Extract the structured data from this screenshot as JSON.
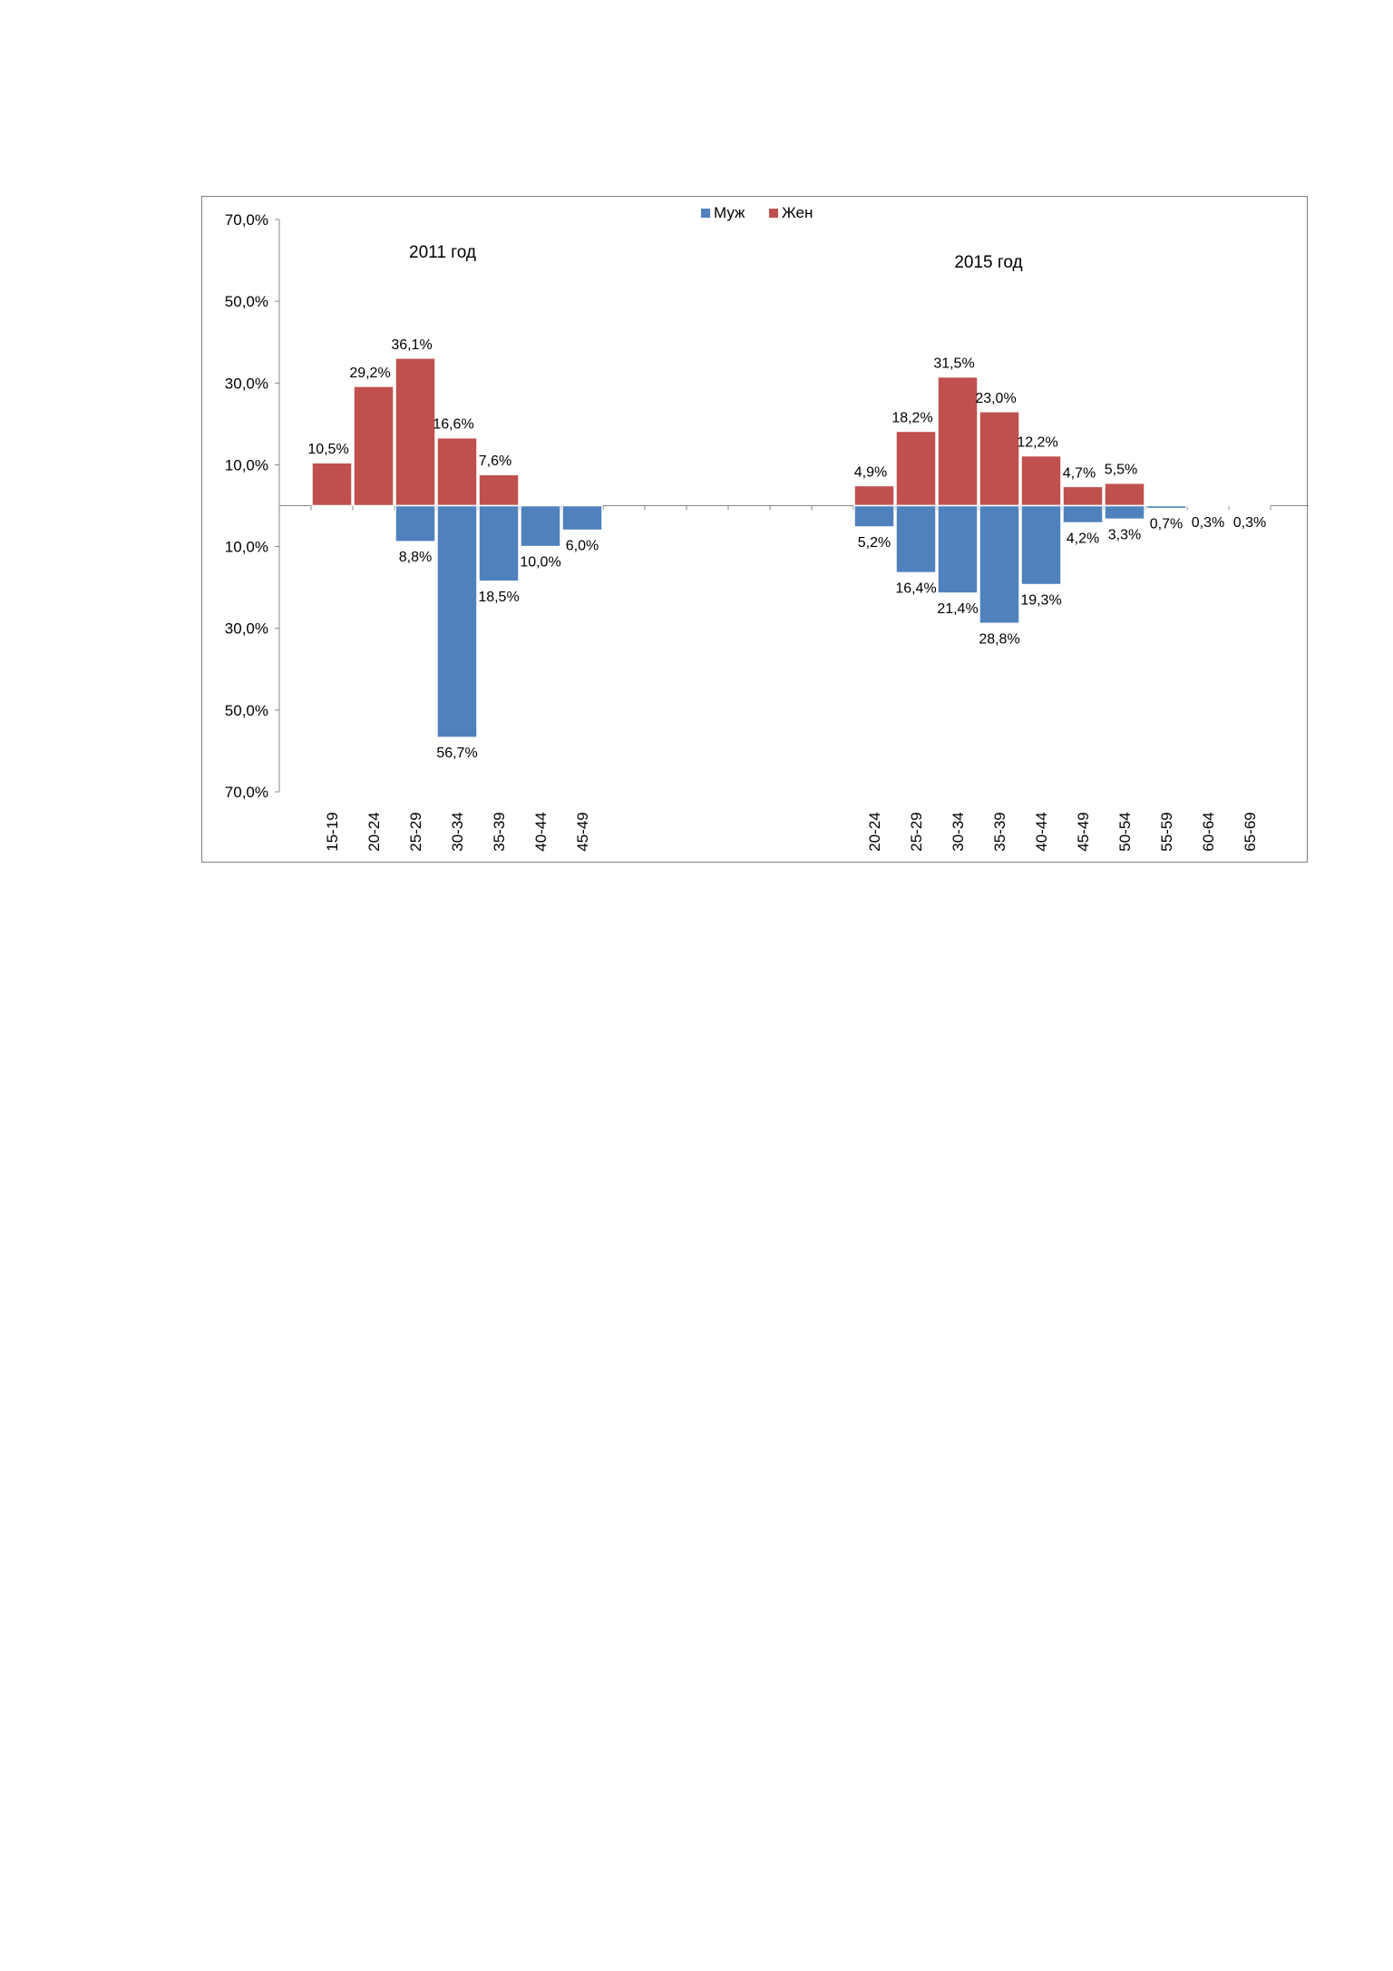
{
  "chart_data": {
    "type": "bar",
    "title": "",
    "legend": {
      "placement": "top-center",
      "items": [
        {
          "name": "Муж",
          "color": "#4f81bd"
        },
        {
          "name": "Жен",
          "color": "#c0504d"
        }
      ]
    },
    "y_axis": {
      "range": [
        -70,
        70
      ],
      "ticks": [
        70,
        50,
        30,
        10,
        -10,
        -30,
        -50,
        -70
      ],
      "tick_labels": [
        "70,0%",
        "50,0%",
        "30,0%",
        "10,0%",
        "10,0%",
        "30,0%",
        "50,0%",
        "70,0%"
      ]
    },
    "panels": [
      {
        "title": "2011 год",
        "categories": [
          "15-19",
          "20-24",
          "25-29",
          "30-34",
          "35-39",
          "40-44",
          "45-49"
        ],
        "series": [
          {
            "name": "Жен",
            "values": [
              10.5,
              29.2,
              36.1,
              16.6,
              7.6,
              null,
              null
            ],
            "labels": [
              "10,5%",
              "29,2%",
              "36,1%",
              "16,6%",
              "7,6%",
              "",
              ""
            ]
          },
          {
            "name": "Муж",
            "values": [
              null,
              null,
              8.8,
              56.7,
              18.5,
              10.0,
              6.0
            ],
            "labels": [
              "",
              "",
              "8,8%",
              "56,7%",
              "18,5%",
              "10,0%",
              "6,0%"
            ]
          }
        ]
      },
      {
        "title": "2015 год",
        "categories": [
          "20-24",
          "25-29",
          "30-34",
          "35-39",
          "40-44",
          "45-49",
          "50-54",
          "55-59",
          "60-64",
          "65-69"
        ],
        "series": [
          {
            "name": "Жен",
            "values": [
              4.9,
              18.2,
              31.5,
              23.0,
              12.2,
              4.7,
              5.5,
              null,
              null,
              null
            ],
            "labels": [
              "4,9%",
              "18,2%",
              "31,5%",
              "23,0%",
              "12,2%",
              "4,7%",
              "5,5%",
              "",
              "",
              ""
            ]
          },
          {
            "name": "Муж",
            "values": [
              5.2,
              16.4,
              21.4,
              28.8,
              19.3,
              4.2,
              3.3,
              0.7,
              0.3,
              0.3
            ],
            "labels": [
              "5,2%",
              "16,4%",
              "21,4%",
              "28,8%",
              "19,3%",
              "4,2%",
              "3,3%",
              "0,7%",
              "0,3%",
              "0,3%"
            ]
          }
        ]
      }
    ]
  }
}
